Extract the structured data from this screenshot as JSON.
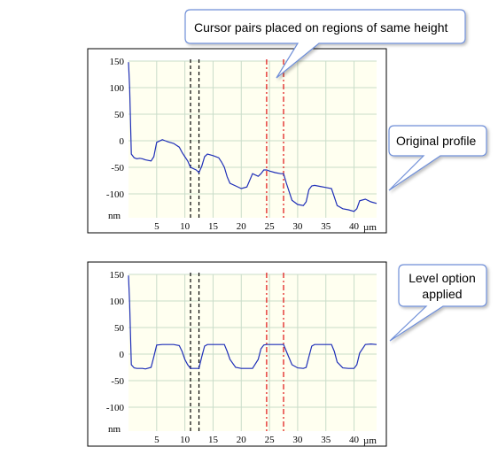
{
  "callouts": {
    "cursor": "Cursor pairs placed on regions of same height",
    "original": "Original profile",
    "level_line1": "Level option",
    "level_line2": "applied"
  },
  "colors": {
    "plot_bg": "#fffff0",
    "grid": "#c9dcc9",
    "profile": "#1f2fb8",
    "cursor_black": "#000000",
    "cursor_red": "#e01010",
    "callout_border": "#6f8fd8"
  },
  "chart_data": [
    {
      "type": "line",
      "xunit": "µm",
      "yunit": "nm",
      "xlim": [
        0,
        44
      ],
      "ylim": [
        -145,
        150
      ],
      "xticks": [
        5,
        10,
        15,
        20,
        25,
        30,
        35,
        40
      ],
      "yticks": [
        150,
        100,
        50,
        0,
        -50,
        -100
      ],
      "grid": true,
      "cursors": [
        {
          "x": 11.0,
          "color": "black"
        },
        {
          "x": 12.5,
          "color": "black"
        },
        {
          "x": 24.5,
          "color": "red"
        },
        {
          "x": 27.5,
          "color": "red"
        }
      ],
      "x": [
        0,
        0.2,
        0.5,
        1,
        1.5,
        2,
        2.5,
        3,
        4,
        4.5,
        5,
        6,
        6.5,
        7,
        8,
        9,
        9.5,
        10,
        10.5,
        11,
        12,
        12.5,
        13,
        13.5,
        14,
        15,
        16,
        16.5,
        17,
        17.5,
        18,
        19,
        20,
        21,
        22,
        23,
        23.5,
        24,
        24.5,
        25,
        26,
        27,
        27.5,
        28,
        29,
        30,
        31,
        31.5,
        32,
        32.5,
        33,
        34,
        35,
        36,
        36.5,
        37,
        38,
        39,
        40,
        40.5,
        41,
        42,
        43,
        44
      ],
      "values": [
        148,
        100,
        -25,
        -32,
        -34,
        -33,
        -34,
        -36,
        -38,
        -30,
        -3,
        2,
        0,
        -2,
        -5,
        -12,
        -22,
        -30,
        -38,
        -50,
        -55,
        -60,
        -48,
        -30,
        -25,
        -28,
        -32,
        -40,
        -50,
        -68,
        -80,
        -85,
        -90,
        -87,
        -62,
        -67,
        -62,
        -55,
        -55,
        -57,
        -60,
        -62,
        -62,
        -80,
        -112,
        -120,
        -122,
        -115,
        -92,
        -85,
        -84,
        -86,
        -88,
        -90,
        -106,
        -122,
        -128,
        -130,
        -133,
        -128,
        -113,
        -110,
        -115,
        -118
      ]
    },
    {
      "type": "line",
      "xunit": "µm",
      "yunit": "nm",
      "xlim": [
        0,
        44
      ],
      "ylim": [
        -145,
        150
      ],
      "xticks": [
        5,
        10,
        15,
        20,
        25,
        30,
        35,
        40
      ],
      "yticks": [
        150,
        100,
        50,
        0,
        -50,
        -100
      ],
      "grid": true,
      "cursors": [
        {
          "x": 11.0,
          "color": "black"
        },
        {
          "x": 12.5,
          "color": "black"
        },
        {
          "x": 24.5,
          "color": "red"
        },
        {
          "x": 27.5,
          "color": "red"
        }
      ],
      "x": [
        0,
        0.2,
        0.5,
        1,
        1.5,
        2,
        2.5,
        3,
        4,
        4.5,
        5,
        6,
        6.5,
        7,
        8,
        9,
        9.5,
        10,
        10.5,
        11,
        12,
        12.5,
        13,
        13.5,
        14,
        15,
        16,
        16.5,
        17,
        17.5,
        18,
        19,
        20,
        21,
        22,
        23,
        23.5,
        24,
        24.5,
        25,
        26,
        27,
        27.5,
        28,
        29,
        30,
        31,
        31.5,
        32,
        32.5,
        33,
        34,
        35,
        36,
        36.5,
        37,
        38,
        39,
        40,
        40.5,
        41,
        42,
        43,
        44
      ],
      "values": [
        148,
        95,
        -20,
        -26,
        -27,
        -27,
        -27,
        -28,
        -25,
        -5,
        17,
        18,
        18,
        18,
        18,
        16,
        5,
        -10,
        -20,
        -27,
        -27,
        -27,
        -5,
        15,
        18,
        18,
        18,
        18,
        18,
        5,
        -10,
        -25,
        -27,
        -27,
        -27,
        -10,
        10,
        17,
        18,
        18,
        18,
        18,
        18,
        5,
        -20,
        -26,
        -27,
        -25,
        -5,
        15,
        18,
        18,
        18,
        18,
        5,
        -15,
        -26,
        -27,
        -27,
        -20,
        2,
        18,
        19,
        18
      ]
    }
  ]
}
